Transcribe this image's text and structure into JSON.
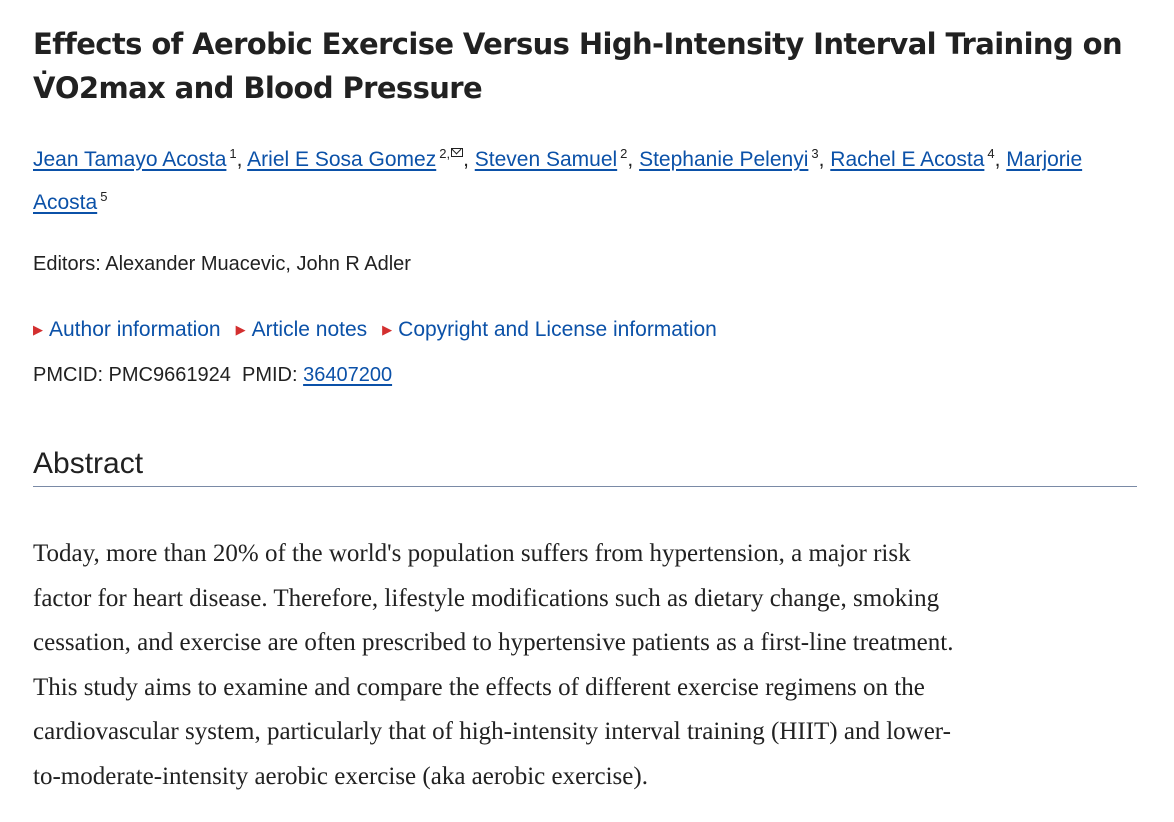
{
  "article": {
    "title_lines": [
      "Effects of Aerobic Exercise Versus High-Intensity Interval Training on",
      "V̇O2max and Blood Pressure"
    ],
    "authors": [
      {
        "name": "Jean Tamayo Acosta",
        "affiliation": "1"
      },
      {
        "name": "Ariel E Sosa Gomez",
        "affiliation": "2,"
      },
      {
        "name": "Steven Samuel",
        "affiliation": "2"
      },
      {
        "name": "Stephanie Pelenyi",
        "affiliation": "3"
      },
      {
        "name": "Rachel E Acosta",
        "affiliation": "4"
      },
      {
        "name_line1": "Marjorie",
        "name_line2": "Acosta",
        "affiliation": "5"
      }
    ],
    "separator": ", ",
    "editors": "Editors: Alexander Muacevic, John R Adler",
    "notes": [
      "Author information",
      "Article notes",
      "Copyright and License information"
    ],
    "ids": {
      "pmcid_text": "PMCID: PMC9661924  PMID: ",
      "pmid": "36407200"
    },
    "section_heading": "Abstract",
    "abstract_lines": [
      "Today, more than 20% of the world's population suffers from hypertension, a major risk",
      "factor for heart disease. Therefore, lifestyle modifications such as dietary change, smoking",
      "cessation, and exercise are often prescribed to hypertensive patients as a first-line treatment.",
      "This study aims to examine and compare the effects of different exercise regimens on the",
      "cardiovascular system, particularly that of high-intensity interval training (HIIT) and lower-",
      "to-moderate-intensity aerobic exercise (aka aerobic exercise)."
    ],
    "colors": {
      "link": "#0b51a8",
      "triangle": "#d32f2f",
      "text": "#212121",
      "rule": "#7a8aa6"
    },
    "icons": {
      "triangle": "triangle-right-icon",
      "mail": "mail-icon"
    }
  }
}
